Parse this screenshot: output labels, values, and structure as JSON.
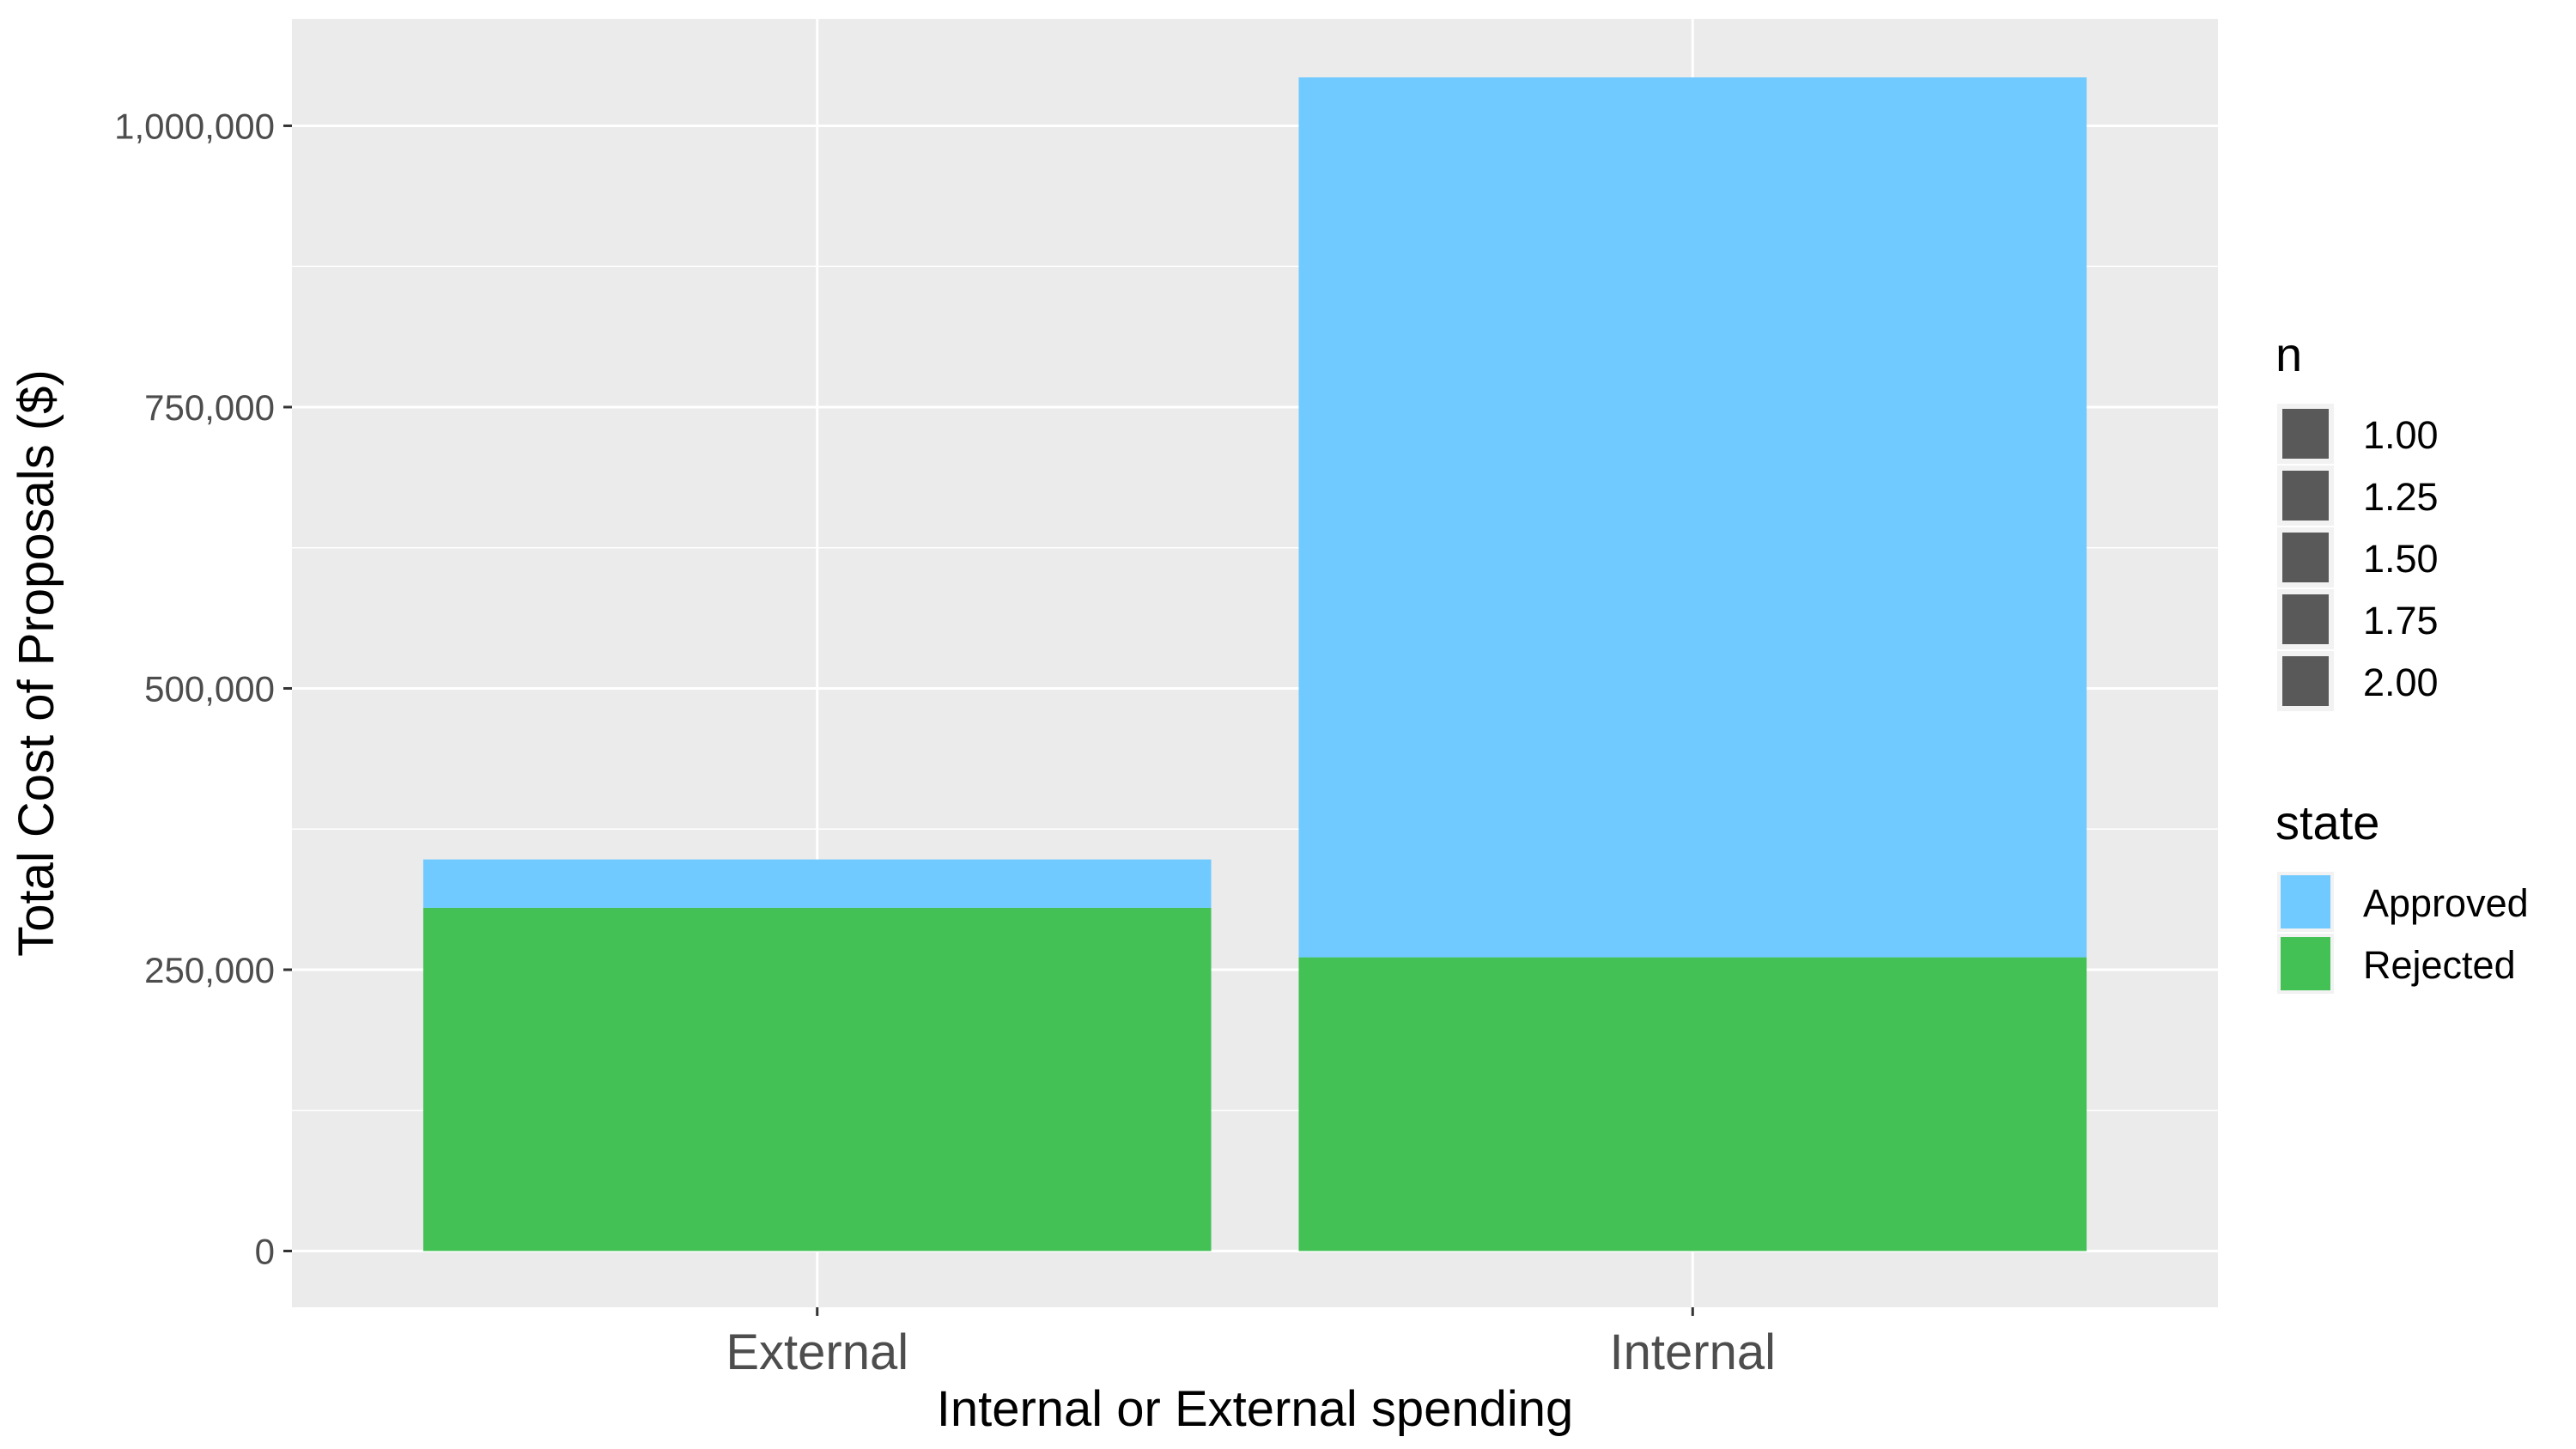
{
  "chart_data": {
    "type": "bar",
    "stacked": true,
    "categories": [
      "External",
      "Internal"
    ],
    "series": [
      {
        "name": "Approved",
        "values": [
          43000,
          782000
        ],
        "color": "#70C9FF"
      },
      {
        "name": "Rejected",
        "values": [
          305000,
          261000
        ],
        "color": "#43C155"
      }
    ],
    "xlabel": "Internal or External spending",
    "ylabel": "Total Cost of Proposals ($)",
    "ylim": [
      -50000,
      1095000
    ],
    "y_ticks": [
      0,
      250000,
      500000,
      750000,
      1000000
    ],
    "y_tick_labels": [
      "0",
      "250,000",
      "500,000",
      "750,000",
      "1,000,000"
    ],
    "grid": true,
    "panel_background": "#EBEBEB",
    "legend_position": "right",
    "legends": [
      {
        "title": "n",
        "labels": [
          "1.00",
          "1.25",
          "1.50",
          "1.75",
          "2.00"
        ],
        "key_color": "#595959"
      },
      {
        "title": "state",
        "labels": [
          "Approved",
          "Rejected"
        ],
        "key_colors": [
          "#70C9FF",
          "#43C155"
        ]
      }
    ]
  }
}
